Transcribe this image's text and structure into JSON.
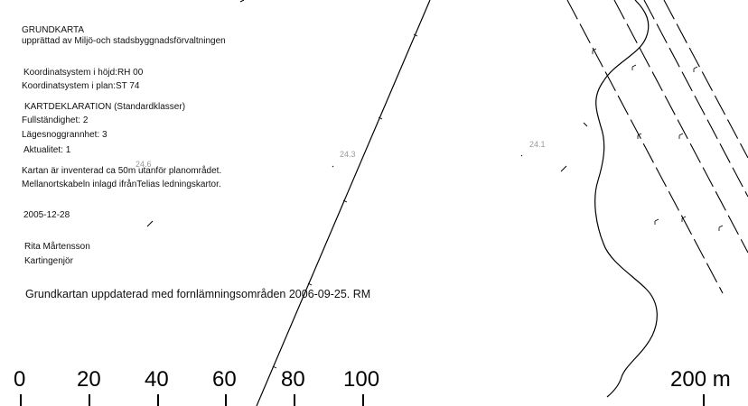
{
  "header": {
    "title": "GRUNDKARTA",
    "subtitle": "upprättad av Miljö-och stadsbyggnadsförvaltningen"
  },
  "coords": {
    "height": "Koordinatsystem i höjd:RH 00",
    "plan": "Koordinatsystem i plan:ST 74"
  },
  "declaration": {
    "heading": "KARTDEKLARATION (Standardklasser)",
    "completeness": "Fullständighet: 2",
    "accuracy": "Lägesnoggrannhet: 3",
    "currency": "Aktualitet: 1"
  },
  "notes": {
    "line1": "Kartan är inventerad ca 50m utanför planområdet.",
    "line2": "Mellanortskabeln inlagd ifrånTelias ledningskartor."
  },
  "date": "2005-12-28",
  "author": {
    "name": "Rita Mårtensson",
    "role": "Kartingenjör"
  },
  "update_note": "Grundkartan uppdaterad med fornlämningsområden 2006-09-25. RM",
  "elevations": [
    "24.6",
    "24.3",
    "24.1"
  ],
  "scale_bar": {
    "labels": [
      "0",
      "20",
      "40",
      "60",
      "80",
      "100",
      "200 m"
    ]
  }
}
